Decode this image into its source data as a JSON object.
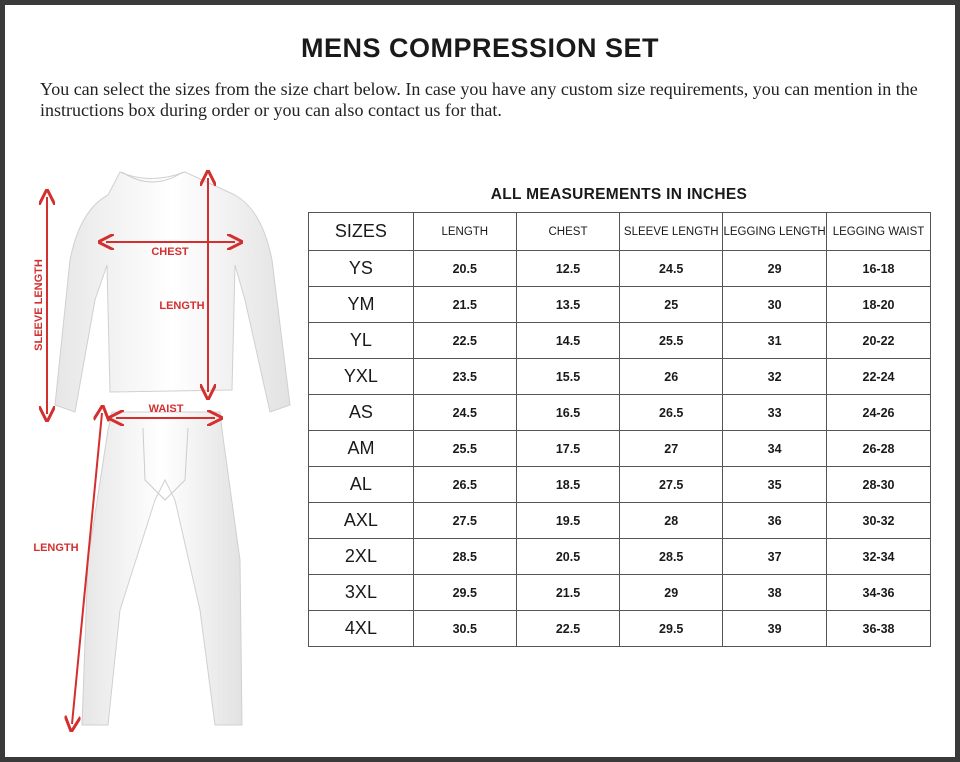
{
  "title": "MENS COMPRESSION SET",
  "intro": "You can select the sizes from the size chart below. In case you have any custom size requirements, you can mention in the instructions box during order or you can also contact us for that.",
  "units_note": "ALL MEASUREMENTS IN INCHES",
  "figure": {
    "labels": {
      "sleeve_length": "SLEEVE LENGTH",
      "chest": "CHEST",
      "shirt_length": "LENGTH",
      "waist": "WAIST",
      "legging_length": "LENGTH"
    },
    "arrow_color": "#d32f2f"
  },
  "table": {
    "headers": [
      "SIZES",
      "LENGTH",
      "CHEST",
      "SLEEVE LENGTH",
      "LEGGING LENGTH",
      "LEGGING WAIST"
    ],
    "rows": [
      [
        "YS",
        "20.5",
        "12.5",
        "24.5",
        "29",
        "16-18"
      ],
      [
        "YM",
        "21.5",
        "13.5",
        "25",
        "30",
        "18-20"
      ],
      [
        "YL",
        "22.5",
        "14.5",
        "25.5",
        "31",
        "20-22"
      ],
      [
        "YXL",
        "23.5",
        "15.5",
        "26",
        "32",
        "22-24"
      ],
      [
        "AS",
        "24.5",
        "16.5",
        "26.5",
        "33",
        "24-26"
      ],
      [
        "AM",
        "25.5",
        "17.5",
        "27",
        "34",
        "26-28"
      ],
      [
        "AL",
        "26.5",
        "18.5",
        "27.5",
        "35",
        "28-30"
      ],
      [
        "AXL",
        "27.5",
        "19.5",
        "28",
        "36",
        "30-32"
      ],
      [
        "2XL",
        "28.5",
        "20.5",
        "28.5",
        "37",
        "32-34"
      ],
      [
        "3XL",
        "29.5",
        "21.5",
        "29",
        "38",
        "34-36"
      ],
      [
        "4XL",
        "30.5",
        "22.5",
        "29.5",
        "39",
        "36-38"
      ]
    ]
  }
}
